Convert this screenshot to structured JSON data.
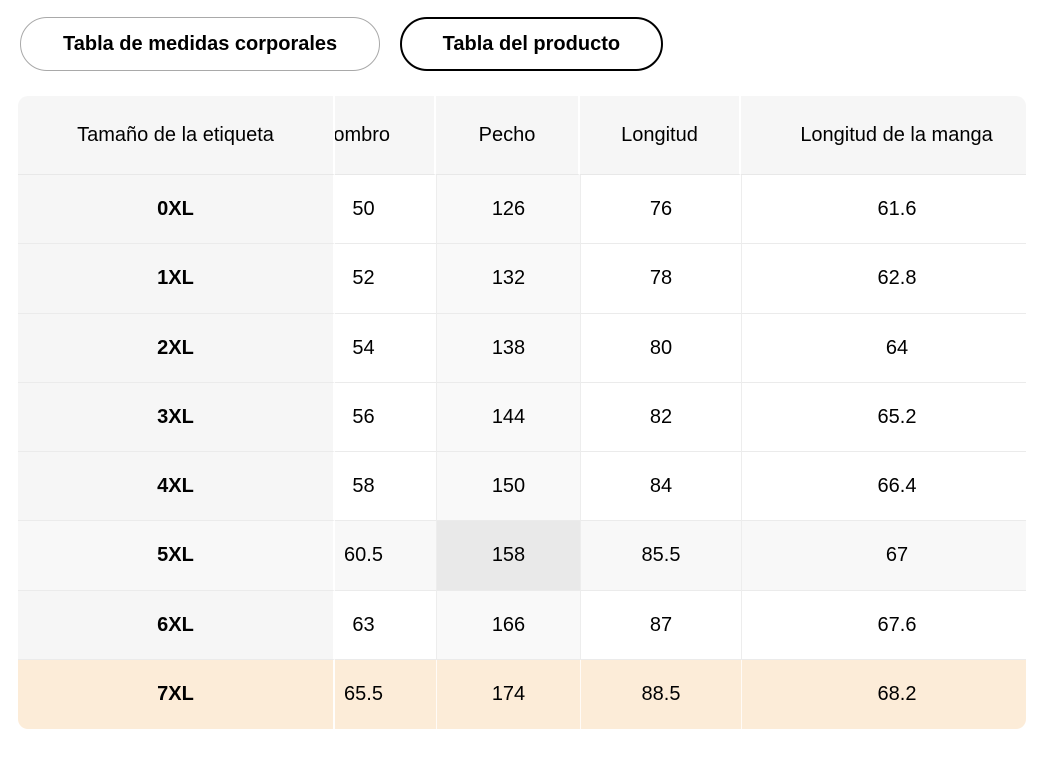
{
  "tabs": [
    {
      "label": "Tabla de medidas corporales",
      "selected": false
    },
    {
      "label": "Tabla del producto",
      "selected": true
    }
  ],
  "table": {
    "columns": [
      "Tamaño de la etiqueta",
      "Hombro",
      "Pecho",
      "Longitud",
      "Longitud de la manga"
    ],
    "rows": [
      {
        "size": "0XL",
        "values": [
          "50",
          "126",
          "76",
          "61.6"
        ]
      },
      {
        "size": "1XL",
        "values": [
          "52",
          "132",
          "78",
          "62.8"
        ]
      },
      {
        "size": "2XL",
        "values": [
          "54",
          "138",
          "80",
          "64"
        ]
      },
      {
        "size": "3XL",
        "values": [
          "56",
          "144",
          "82",
          "65.2"
        ]
      },
      {
        "size": "4XL",
        "values": [
          "58",
          "150",
          "84",
          "66.4"
        ]
      },
      {
        "size": "5XL",
        "values": [
          "60.5",
          "158",
          "85.5",
          "67"
        ],
        "highlight": "hover"
      },
      {
        "size": "6XL",
        "values": [
          "63",
          "166",
          "87",
          "67.6"
        ]
      },
      {
        "size": "7XL",
        "values": [
          "65.5",
          "174",
          "88.5",
          "68.2"
        ],
        "highlight": "selected"
      }
    ],
    "highlighted_column": "Pecho",
    "colors": {
      "header_bg": "#f6f6f6",
      "sticky_column_bg": "#f6f6f6",
      "pecho_column_tint": "#f9f9f9",
      "hover_row_bg": "#f8f8f8",
      "hover_cell_bg": "#e9e9e9",
      "selected_row_bg": "#fcecd8",
      "row_divider": "#ebebeb",
      "selected_tab_border": "#000000",
      "unselected_tab_border": "#a9a9a9"
    }
  }
}
